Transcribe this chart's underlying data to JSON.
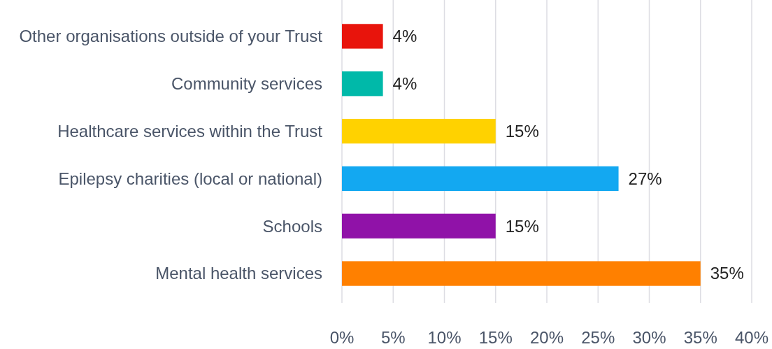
{
  "chart_data": {
    "type": "bar",
    "orientation": "horizontal",
    "categories": [
      "Other organisations outside of your Trust",
      "Community services",
      "Healthcare services within the Trust",
      "Epilepsy charities (local or national)",
      "Schools",
      "Mental health services"
    ],
    "values": [
      4,
      4,
      15,
      27,
      15,
      35
    ],
    "colors": [
      "#e8140c",
      "#00b9a9",
      "#ffd200",
      "#13a8f1",
      "#9012a8",
      "#ff8000"
    ],
    "value_labels": [
      "4%",
      "4%",
      "15%",
      "27%",
      "15%",
      "35%"
    ],
    "xlim": [
      0,
      40
    ],
    "xticks": [
      {
        "value": 0,
        "label": "0%"
      },
      {
        "value": 5,
        "label": "5%"
      },
      {
        "value": 10,
        "label": "10%"
      },
      {
        "value": 15,
        "label": "15%"
      },
      {
        "value": 20,
        "label": "20%"
      },
      {
        "value": 25,
        "label": "25%"
      },
      {
        "value": 30,
        "label": "30%"
      },
      {
        "value": 35,
        "label": "35%"
      },
      {
        "value": 40,
        "label": "40%"
      }
    ],
    "grid": "x"
  }
}
